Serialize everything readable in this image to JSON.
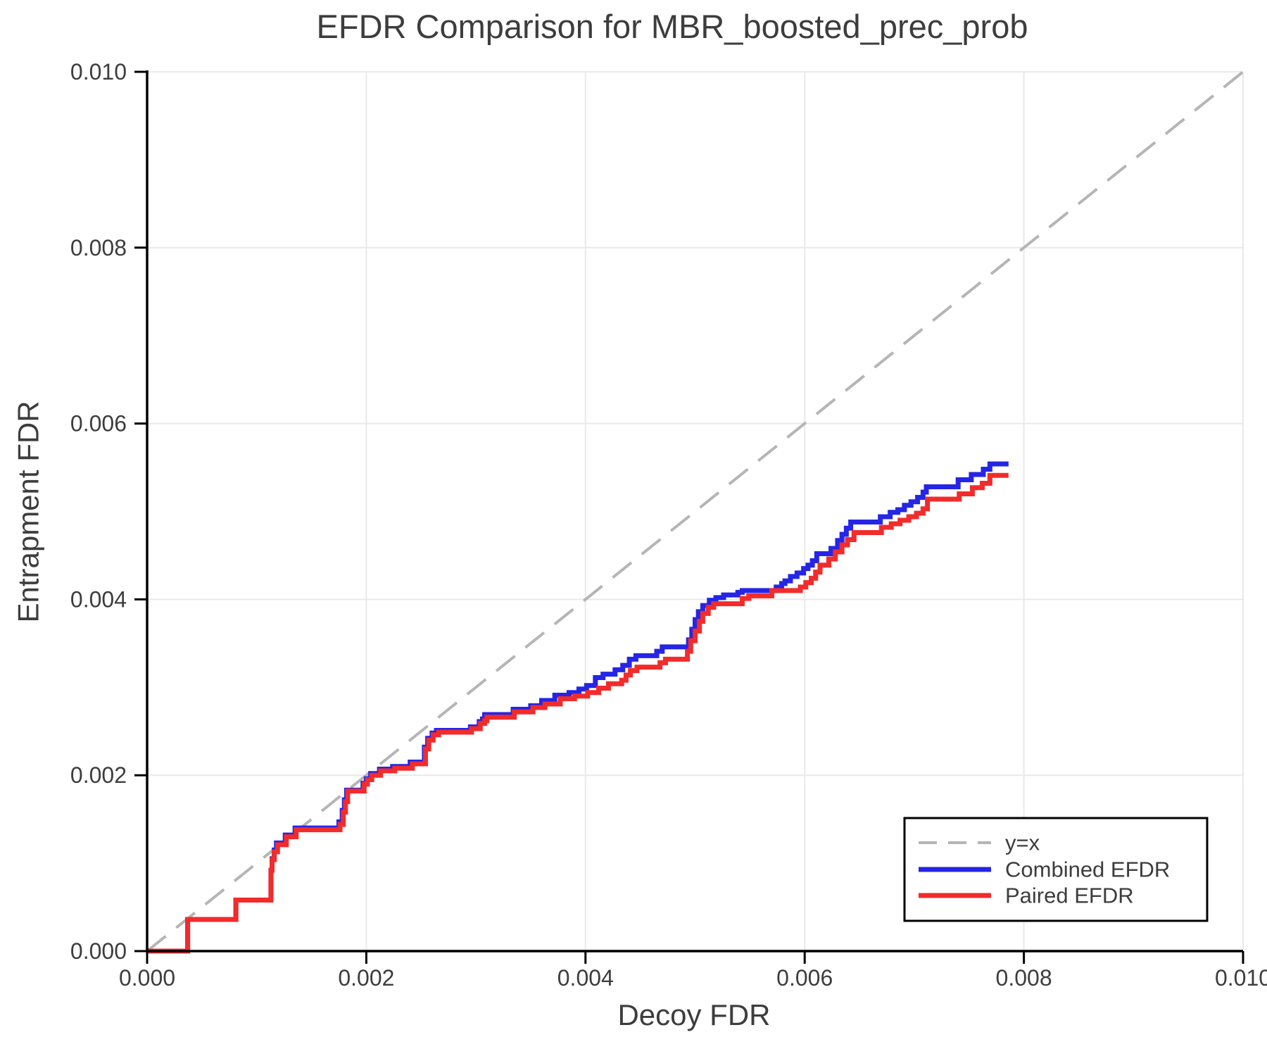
{
  "figure": {
    "background": "#ffffff"
  },
  "colors": {
    "grid": "#e9e9e9",
    "spine": "#000000",
    "tick": "#000000",
    "text": "#3d3d3d",
    "identity_line": "#b5b5b5",
    "combined": "#2525e6",
    "paired": "#f22b2b",
    "legend_border": "#000000",
    "legend_background": "#ffffff"
  },
  "chart_data": {
    "type": "line",
    "title": "EFDR Comparison for MBR_boosted_prec_prob",
    "xlabel": "Decoy FDR",
    "ylabel": "Entrapment FDR",
    "xlim": [
      0,
      0.01
    ],
    "ylim": [
      0,
      0.01
    ],
    "grid": true,
    "legend_position": "lower right",
    "x_ticks": [
      0,
      0.002,
      0.004,
      0.006,
      0.008,
      0.01
    ],
    "y_ticks": [
      0,
      0.002,
      0.004,
      0.006,
      0.008,
      0.01
    ],
    "x_tick_labels": [
      "0.000",
      "0.002",
      "0.004",
      "0.006",
      "0.008",
      "0.010"
    ],
    "y_tick_labels": [
      "0.000",
      "0.002",
      "0.004",
      "0.006",
      "0.008",
      "0.010"
    ],
    "series": [
      {
        "name": "y=x",
        "mode": "line",
        "dashed": true,
        "color": "#b5b5b5",
        "points": [
          [
            0,
            0
          ],
          [
            0.01,
            0.01
          ]
        ]
      },
      {
        "name": "Combined EFDR",
        "mode": "step",
        "dashed": false,
        "color": "#2525e6",
        "points": [
          [
            0,
            0
          ],
          [
            0.00037,
            0.00036
          ],
          [
            0.00081,
            0.00058
          ],
          [
            0.00113,
            0.00092
          ],
          [
            0.00114,
            0.00105
          ],
          [
            0.00116,
            0.00115
          ],
          [
            0.00118,
            0.00123
          ],
          [
            0.00126,
            0.00132
          ],
          [
            0.00135,
            0.0014
          ],
          [
            0.00175,
            0.00147
          ],
          [
            0.00178,
            0.0016
          ],
          [
            0.0018,
            0.00172
          ],
          [
            0.00182,
            0.00183
          ],
          [
            0.00197,
            0.00191
          ],
          [
            0.002,
            0.00196
          ],
          [
            0.00204,
            0.00202
          ],
          [
            0.00212,
            0.00207
          ],
          [
            0.00224,
            0.0021
          ],
          [
            0.0024,
            0.00215
          ],
          [
            0.00253,
            0.00232
          ],
          [
            0.00256,
            0.00242
          ],
          [
            0.0026,
            0.00248
          ],
          [
            0.00264,
            0.00251
          ],
          [
            0.00295,
            0.00255
          ],
          [
            0.00303,
            0.00261
          ],
          [
            0.00306,
            0.00264
          ],
          [
            0.00308,
            0.00269
          ],
          [
            0.00334,
            0.00275
          ],
          [
            0.0035,
            0.00279
          ],
          [
            0.0036,
            0.00285
          ],
          [
            0.00372,
            0.00291
          ],
          [
            0.00385,
            0.00294
          ],
          [
            0.00394,
            0.00298
          ],
          [
            0.00401,
            0.00302
          ],
          [
            0.00409,
            0.00311
          ],
          [
            0.00416,
            0.00315
          ],
          [
            0.00427,
            0.0032
          ],
          [
            0.00434,
            0.00325
          ],
          [
            0.0044,
            0.00332
          ],
          [
            0.00446,
            0.00336
          ],
          [
            0.00465,
            0.00341
          ],
          [
            0.0047,
            0.00346
          ],
          [
            0.00494,
            0.00354
          ],
          [
            0.00497,
            0.00366
          ],
          [
            0.005,
            0.00377
          ],
          [
            0.00503,
            0.00386
          ],
          [
            0.00507,
            0.00393
          ],
          [
            0.00513,
            0.00399
          ],
          [
            0.00519,
            0.00402
          ],
          [
            0.00526,
            0.00405
          ],
          [
            0.00539,
            0.00408
          ],
          [
            0.00543,
            0.0041
          ],
          [
            0.00574,
            0.00414
          ],
          [
            0.00579,
            0.00418
          ],
          [
            0.00582,
            0.00421
          ],
          [
            0.00587,
            0.00426
          ],
          [
            0.00593,
            0.0043
          ],
          [
            0.00599,
            0.00435
          ],
          [
            0.00603,
            0.00439
          ],
          [
            0.00607,
            0.00444
          ],
          [
            0.00611,
            0.00452
          ],
          [
            0.00624,
            0.00458
          ],
          [
            0.0063,
            0.00467
          ],
          [
            0.00634,
            0.00474
          ],
          [
            0.00638,
            0.00481
          ],
          [
            0.00642,
            0.00488
          ],
          [
            0.00669,
            0.00494
          ],
          [
            0.00678,
            0.00499
          ],
          [
            0.00685,
            0.00502
          ],
          [
            0.00691,
            0.00507
          ],
          [
            0.00697,
            0.00511
          ],
          [
            0.00703,
            0.00516
          ],
          [
            0.00708,
            0.00522
          ],
          [
            0.00711,
            0.00528
          ],
          [
            0.0074,
            0.00536
          ],
          [
            0.00752,
            0.00542
          ],
          [
            0.00763,
            0.00548
          ],
          [
            0.00769,
            0.00554
          ],
          [
            0.00786,
            0.00554
          ]
        ]
      },
      {
        "name": "Paired EFDR",
        "mode": "step",
        "dashed": false,
        "color": "#f22b2b",
        "points": [
          [
            0,
            0
          ],
          [
            0.00037,
            0.00036
          ],
          [
            0.00081,
            0.00058
          ],
          [
            0.00113,
            0.00092
          ],
          [
            0.00114,
            0.00104
          ],
          [
            0.00116,
            0.00113
          ],
          [
            0.00119,
            0.00121
          ],
          [
            0.00127,
            0.0013
          ],
          [
            0.00136,
            0.00138
          ],
          [
            0.00176,
            0.00144
          ],
          [
            0.00179,
            0.00158
          ],
          [
            0.00181,
            0.0017
          ],
          [
            0.00183,
            0.00182
          ],
          [
            0.00198,
            0.0019
          ],
          [
            0.00201,
            0.00195
          ],
          [
            0.00205,
            0.002
          ],
          [
            0.00213,
            0.00205
          ],
          [
            0.00226,
            0.00208
          ],
          [
            0.00242,
            0.00213
          ],
          [
            0.00254,
            0.0023
          ],
          [
            0.00257,
            0.0024
          ],
          [
            0.00261,
            0.00246
          ],
          [
            0.00266,
            0.00249
          ],
          [
            0.00296,
            0.00253
          ],
          [
            0.00304,
            0.00259
          ],
          [
            0.00308,
            0.00262
          ],
          [
            0.0031,
            0.00266
          ],
          [
            0.00335,
            0.00272
          ],
          [
            0.00352,
            0.00277
          ],
          [
            0.00363,
            0.00281
          ],
          [
            0.00377,
            0.00287
          ],
          [
            0.0039,
            0.0029
          ],
          [
            0.00402,
            0.00294
          ],
          [
            0.00412,
            0.00299
          ],
          [
            0.00421,
            0.00304
          ],
          [
            0.00433,
            0.00308
          ],
          [
            0.00437,
            0.00314
          ],
          [
            0.00441,
            0.00319
          ],
          [
            0.00447,
            0.00323
          ],
          [
            0.00468,
            0.00328
          ],
          [
            0.00473,
            0.00332
          ],
          [
            0.00493,
            0.00341
          ],
          [
            0.00496,
            0.00353
          ],
          [
            0.005,
            0.00364
          ],
          [
            0.00504,
            0.00375
          ],
          [
            0.00507,
            0.00384
          ],
          [
            0.00512,
            0.00391
          ],
          [
            0.00517,
            0.00395
          ],
          [
            0.00543,
            0.00401
          ],
          [
            0.00549,
            0.00404
          ],
          [
            0.0057,
            0.0041
          ],
          [
            0.00596,
            0.00414
          ],
          [
            0.00601,
            0.00419
          ],
          [
            0.00606,
            0.00424
          ],
          [
            0.0061,
            0.00431
          ],
          [
            0.00614,
            0.00439
          ],
          [
            0.00622,
            0.00446
          ],
          [
            0.00628,
            0.00454
          ],
          [
            0.00634,
            0.00462
          ],
          [
            0.00639,
            0.00468
          ],
          [
            0.00645,
            0.00476
          ],
          [
            0.0067,
            0.00482
          ],
          [
            0.00679,
            0.00486
          ],
          [
            0.00687,
            0.0049
          ],
          [
            0.00695,
            0.00494
          ],
          [
            0.00702,
            0.00498
          ],
          [
            0.00708,
            0.00503
          ],
          [
            0.00712,
            0.00514
          ],
          [
            0.00741,
            0.0052
          ],
          [
            0.00753,
            0.00527
          ],
          [
            0.00762,
            0.00532
          ],
          [
            0.00769,
            0.00541
          ],
          [
            0.00786,
            0.00541
          ]
        ]
      }
    ]
  }
}
